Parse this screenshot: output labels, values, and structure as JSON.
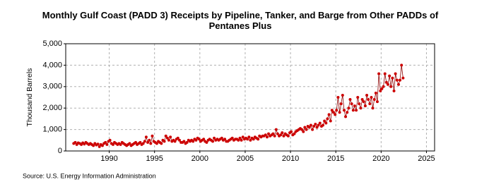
{
  "chart_data": {
    "type": "line",
    "title": "Monthly Gulf Coast (PADD 3) Receipts by Pipeline, Tanker, and Barge from Other PADDs of Pentanes Plus",
    "y_label": "Thousand Barrels",
    "source": "Source: U.S. Energy Information Administration",
    "xlim": [
      1985.2,
      2025.9
    ],
    "xticks": [
      1990,
      1995,
      2000,
      2005,
      2010,
      2015,
      2020,
      2025
    ],
    "ylim": [
      0,
      5000
    ],
    "yticks": [
      0,
      {
        "value": 1000,
        "label": "1,000"
      },
      {
        "value": 2000,
        "label": "2,000"
      },
      {
        "value": 3000,
        "label": "3,000"
      },
      {
        "value": 4000,
        "label": "4,000"
      },
      {
        "value": 5000,
        "label": "5,000"
      }
    ],
    "grid": true,
    "series": [
      {
        "name": "Receipts",
        "color": "#cc0000",
        "x": [
          1986.08,
          1986.25,
          1986.42,
          1986.58,
          1986.75,
          1986.92,
          1987.08,
          1987.25,
          1987.42,
          1987.58,
          1987.75,
          1987.92,
          1988.08,
          1988.25,
          1988.42,
          1988.58,
          1988.75,
          1988.92,
          1989.08,
          1989.25,
          1989.42,
          1989.58,
          1989.75,
          1989.92,
          1990.08,
          1990.25,
          1990.42,
          1990.58,
          1990.75,
          1990.92,
          1991.08,
          1991.25,
          1991.42,
          1991.58,
          1991.75,
          1991.92,
          1992.08,
          1992.25,
          1992.42,
          1992.58,
          1992.75,
          1992.92,
          1993.08,
          1993.25,
          1993.42,
          1993.58,
          1993.75,
          1993.92,
          1994.08,
          1994.25,
          1994.42,
          1994.58,
          1994.75,
          1994.92,
          1995.08,
          1995.25,
          1995.42,
          1995.58,
          1995.75,
          1995.92,
          1996.08,
          1996.25,
          1996.42,
          1996.58,
          1996.75,
          1996.92,
          1997.08,
          1997.25,
          1997.42,
          1997.58,
          1997.75,
          1997.92,
          1998.08,
          1998.25,
          1998.42,
          1998.58,
          1998.75,
          1998.92,
          1999.08,
          1999.25,
          1999.42,
          1999.58,
          1999.75,
          1999.92,
          2000.08,
          2000.25,
          2000.42,
          2000.58,
          2000.75,
          2000.92,
          2001.08,
          2001.25,
          2001.42,
          2001.58,
          2001.75,
          2001.92,
          2002.08,
          2002.25,
          2002.42,
          2002.58,
          2002.75,
          2002.92,
          2003.08,
          2003.25,
          2003.42,
          2003.58,
          2003.75,
          2003.92,
          2004.08,
          2004.25,
          2004.42,
          2004.58,
          2004.75,
          2004.92,
          2005.08,
          2005.25,
          2005.42,
          2005.58,
          2005.75,
          2005.92,
          2006.08,
          2006.25,
          2006.42,
          2006.58,
          2006.75,
          2006.92,
          2007.08,
          2007.25,
          2007.42,
          2007.58,
          2007.75,
          2007.92,
          2008.08,
          2008.25,
          2008.42,
          2008.58,
          2008.75,
          2008.92,
          2009.08,
          2009.25,
          2009.42,
          2009.58,
          2009.75,
          2009.92,
          2010.08,
          2010.25,
          2010.42,
          2010.58,
          2010.75,
          2010.92,
          2011.08,
          2011.25,
          2011.42,
          2011.58,
          2011.75,
          2011.92,
          2012.08,
          2012.25,
          2012.42,
          2012.58,
          2012.75,
          2012.92,
          2013.08,
          2013.25,
          2013.42,
          2013.58,
          2013.75,
          2013.92,
          2014.08,
          2014.25,
          2014.42,
          2014.58,
          2014.75,
          2014.92,
          2015.08,
          2015.25,
          2015.42,
          2015.58,
          2015.75,
          2015.92,
          2016.08,
          2016.25,
          2016.42,
          2016.58,
          2016.75,
          2016.92,
          2017.08,
          2017.25,
          2017.42,
          2017.58,
          2017.75,
          2017.92,
          2018.08,
          2018.25,
          2018.42,
          2018.58,
          2018.75,
          2018.92,
          2019.08,
          2019.25,
          2019.42,
          2019.58,
          2019.75,
          2019.92,
          2020.08,
          2020.25,
          2020.42,
          2020.58,
          2020.75,
          2020.92,
          2021.08,
          2021.25,
          2021.42,
          2021.58,
          2021.75,
          2021.92,
          2022.08,
          2022.25,
          2022.42
        ],
        "values": [
          350,
          400,
          300,
          380,
          350,
          300,
          380,
          320,
          400,
          350,
          300,
          350,
          300,
          250,
          350,
          280,
          320,
          200,
          300,
          250,
          350,
          400,
          300,
          450,
          500,
          350,
          300,
          400,
          350,
          300,
          350,
          300,
          400,
          350,
          300,
          250,
          300,
          350,
          250,
          300,
          350,
          400,
          300,
          350,
          400,
          300,
          350,
          450,
          650,
          400,
          500,
          350,
          700,
          450,
          400,
          350,
          450,
          400,
          350,
          500,
          450,
          700,
          600,
          500,
          650,
          450,
          500,
          450,
          550,
          600,
          500,
          400,
          400,
          450,
          350,
          400,
          500,
          450,
          500,
          450,
          550,
          500,
          600,
          550,
          450,
          500,
          550,
          450,
          400,
          500,
          550,
          500,
          450,
          600,
          500,
          550,
          500,
          550,
          600,
          500,
          550,
          450,
          450,
          500,
          550,
          600,
          500,
          550,
          550,
          500,
          600,
          500,
          650,
          550,
          600,
          550,
          650,
          500,
          600,
          550,
          650,
          600,
          550,
          700,
          650,
          700,
          700,
          750,
          650,
          800,
          700,
          750,
          800,
          700,
          1000,
          800,
          700,
          750,
          850,
          700,
          800,
          750,
          700,
          850,
          900,
          750,
          800,
          900,
          950,
          1000,
          1050,
          1000,
          900,
          1100,
          1000,
          1150,
          1100,
          1200,
          1000,
          1150,
          1250,
          1100,
          1200,
          1300,
          1150,
          1200,
          1400,
          1300,
          1500,
          1700,
          1400,
          1900,
          1800,
          1700,
          1900,
          2500,
          1800,
          2200,
          2600,
          1900,
          1600,
          1800,
          2000,
          2400,
          2200,
          1900,
          2100,
          1900,
          2500,
          2200,
          2000,
          2400,
          2300,
          2100,
          2600,
          2400,
          2200,
          2500,
          2000,
          2400,
          2700,
          2300,
          3600,
          2800,
          2900,
          3000,
          3600,
          3200,
          3100,
          3500,
          3000,
          3400,
          2800,
          3600,
          3300,
          3100,
          3300,
          4000,
          3400
        ]
      }
    ]
  }
}
